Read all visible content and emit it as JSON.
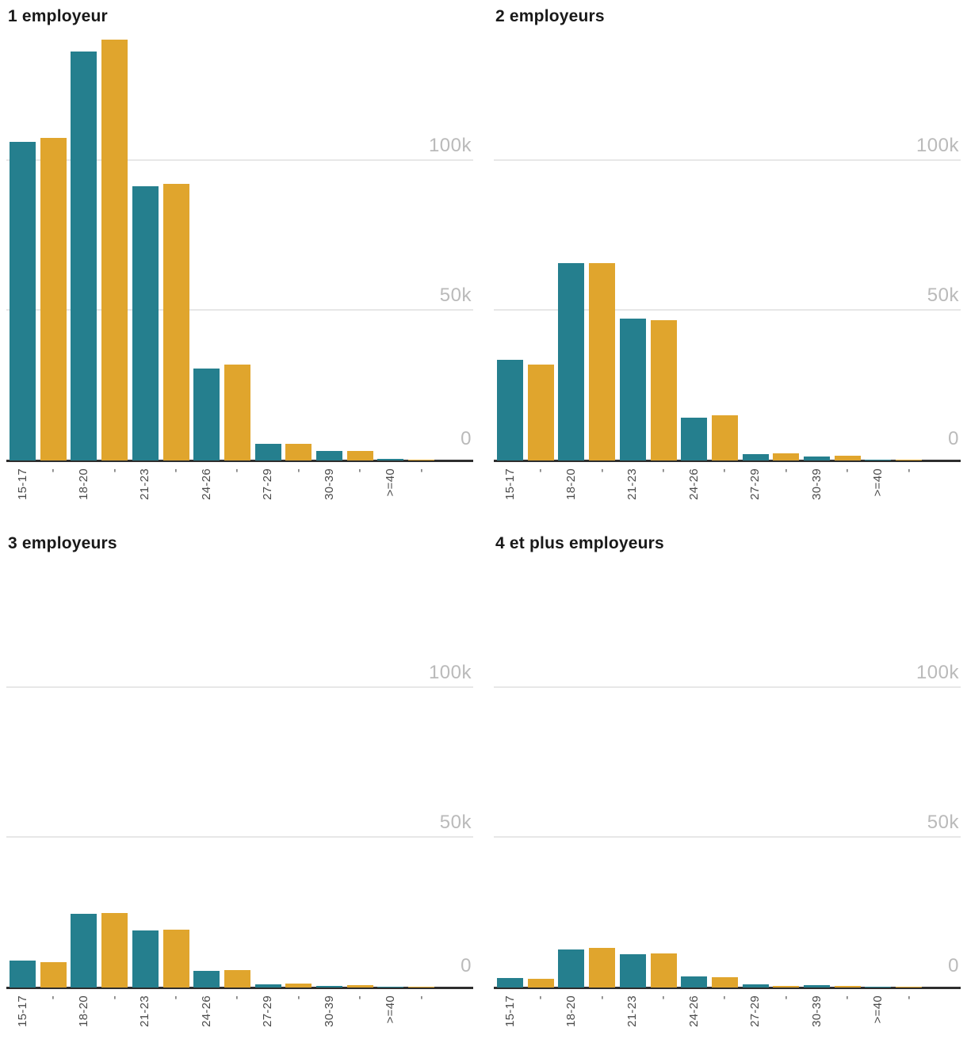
{
  "page": {
    "background": "#ffffff"
  },
  "colors": {
    "teal": "#257F8E",
    "yellow": "#E0A52D",
    "axis": "#2E2E2E",
    "grid": "#E7E7E7",
    "y_label": "#BABABA",
    "x_label": "#4A4A4A",
    "title": "#191919"
  },
  "x_tick_dash": "-",
  "y_axis": {
    "ticks": [
      {
        "label": "100k",
        "value": 100000
      },
      {
        "label": "50k",
        "value": 50000
      },
      {
        "label": "0",
        "value": 0
      }
    ]
  },
  "chart_data": [
    {
      "type": "bar",
      "title": "1 employeur",
      "categories": [
        "15-17",
        "18-20",
        "21-23",
        "24-26",
        "27-29",
        "30-39",
        ">=40"
      ],
      "series": [
        {
          "name": "serie-teal",
          "color_key": "teal",
          "values": [
            106300,
            136500,
            91500,
            30700,
            5600,
            3200,
            600
          ]
        },
        {
          "name": "serie-yellow",
          "color_key": "yellow",
          "values": [
            107700,
            140500,
            92300,
            32000,
            5600,
            3200,
            400
          ]
        }
      ],
      "ylim": [
        0,
        151000
      ],
      "grid": "horizontal",
      "legend": "none"
    },
    {
      "type": "bar",
      "title": "2 employeurs",
      "categories": [
        "15-17",
        "18-20",
        "21-23",
        "24-26",
        "27-29",
        "30-39",
        ">=40"
      ],
      "series": [
        {
          "name": "serie-teal",
          "color_key": "teal",
          "values": [
            33500,
            66000,
            47300,
            14300,
            2100,
            1300,
            150
          ]
        },
        {
          "name": "serie-yellow",
          "color_key": "yellow",
          "values": [
            32000,
            66000,
            46800,
            15100,
            2400,
            1600,
            150
          ]
        }
      ],
      "ylim": [
        0,
        151000
      ],
      "grid": "horizontal",
      "legend": "none"
    },
    {
      "type": "bar",
      "title": "3 employeurs",
      "categories": [
        "15-17",
        "18-20",
        "21-23",
        "24-26",
        "27-29",
        "30-39",
        ">=40"
      ],
      "series": [
        {
          "name": "serie-teal",
          "color_key": "teal",
          "values": [
            9000,
            24600,
            19000,
            5600,
            1100,
            600,
            100
          ]
        },
        {
          "name": "serie-yellow",
          "color_key": "yellow",
          "values": [
            8500,
            24900,
            19300,
            5800,
            1300,
            700,
            100
          ]
        }
      ],
      "ylim": [
        0,
        151000
      ],
      "grid": "horizontal",
      "legend": "none"
    },
    {
      "type": "bar",
      "title": "4 et plus employeurs",
      "categories": [
        "15-17",
        "18-20",
        "21-23",
        "24-26",
        "27-29",
        "30-39",
        ">=40"
      ],
      "series": [
        {
          "name": "serie-teal",
          "color_key": "teal",
          "values": [
            3200,
            12700,
            11100,
            3700,
            1100,
            700,
            50
          ]
        },
        {
          "name": "serie-yellow",
          "color_key": "yellow",
          "values": [
            2900,
            13200,
            11400,
            3400,
            500,
            500,
            50
          ]
        }
      ],
      "ylim": [
        0,
        151000
      ],
      "grid": "horizontal",
      "legend": "none"
    }
  ]
}
